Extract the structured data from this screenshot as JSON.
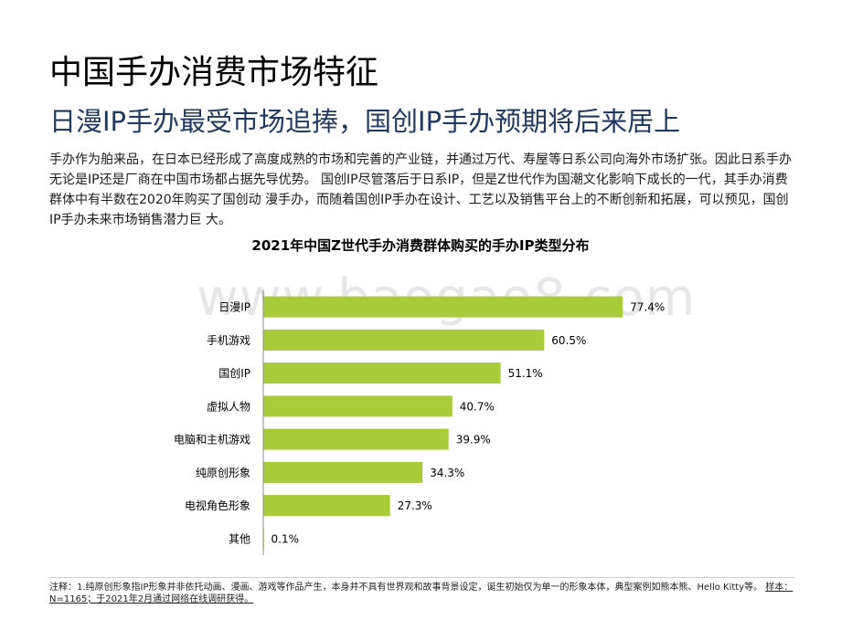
{
  "page": {
    "title": "中国手办消费市场特征",
    "subtitle": "日漫IP手办最受市场追捧，国创IP手办预期将后来居上",
    "description": "手办作为舶来品，在日本已经形成了高度成熟的市场和完善的产业链，并通过万代、寿屋等日系公司向海外市场扩张。因此日系手办无论是IP还是厂商在中国市场都占据先导优势。 国创IP尽管落后于日系IP，但是Z世代作为国潮文化影响下成长的一代，其手办消费群体中有半数在2020年购买了国创动 漫手办，而随着国创IP手办在设计、工艺以及销售平台上的不断创新和拓展，可以预见，国创IP手办未来市场销售潜力巨 大。",
    "watermark": "www.baogao8.com",
    "footnote_main": "注释：1.纯原创形象指IP形象并非依托动画、漫画、游戏等作品产生，本身并不具有世界观和故事背景设定，诞生初始仅为单一的形象本体，典型案例如熊本熊、Hello Kitty等。 ",
    "footnote_sample": "样本：N=1165；于2021年2月通过网络在线调研获得。"
  },
  "colors": {
    "bar": "#a8cb3a",
    "axis": "#8c8c8c",
    "subtitle": "#1f3864"
  },
  "chart_data": {
    "type": "bar",
    "orientation": "horizontal",
    "title": "2021年中国Z世代手办消费群体购买的手办IP类型分布",
    "categories": [
      "日漫IP",
      "手机游戏",
      "国创IP",
      "虚拟人物",
      "电脑和主机游戏",
      "纯原创形象",
      "电视角色形象",
      "其他"
    ],
    "values": [
      77.4,
      60.5,
      51.1,
      40.7,
      39.9,
      34.3,
      27.3,
      0.1
    ],
    "value_labels": [
      "77.4%",
      "60.5%",
      "51.1%",
      "40.7%",
      "39.9%",
      "34.3%",
      "27.3%",
      "0.1%"
    ],
    "unit": "%",
    "xlim": [
      0,
      100
    ],
    "grid": false
  }
}
